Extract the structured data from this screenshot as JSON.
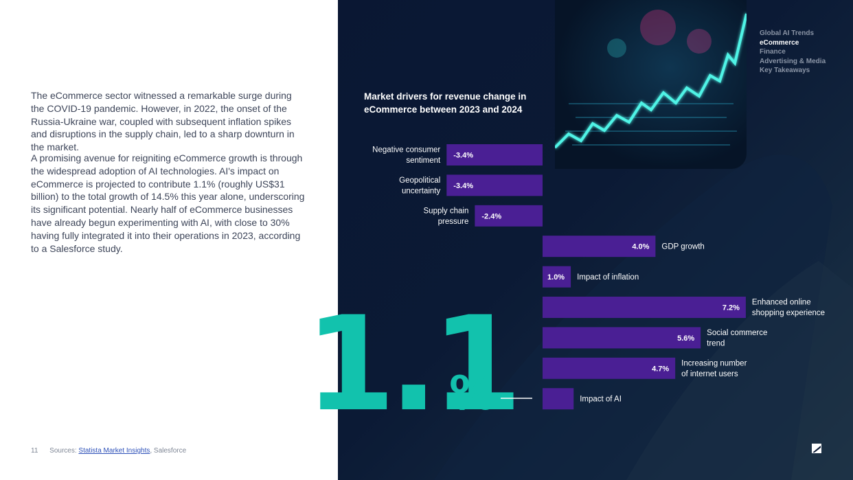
{
  "content": {
    "paragraph_1": "The eCommerce sector witnessed a remarkable surge during the COVID-19 pandemic. However, in 2022, the onset of the Russia-Ukraine war, coupled with subsequent inflation spikes and disruptions in the supply chain, led to a sharp downturn in the market.",
    "paragraph_2": "A promising avenue for reigniting eCommerce growth is through the widespread adoption of AI technologies. AI's impact on eCommerce is projected to contribute 1.1% (roughly US$31 billion) to the total growth of 14.5% this year alone, underscoring its significant potential. Nearly half of eCommerce businesses have already begun experimenting with AI, with close to 30% having fully integrated it into their operations in 2023, according to a Salesforce study."
  },
  "footer": {
    "page_number": "11",
    "sources_prefix": "Sources: ",
    "source_link": "Statista Market Insights",
    "source_rest": ", Salesforce"
  },
  "nav": {
    "items": [
      "Global AI Trends",
      "eCommerce",
      "Finance",
      "Advertising & Media",
      "Key Takeaways"
    ],
    "active": "eCommerce"
  },
  "highlight": {
    "value": "1.1",
    "unit": "%"
  },
  "colors": {
    "bar": "#4a1f94",
    "highlight": "#12c2ad",
    "panel": "#0b1a35",
    "text_light": "#ffffff",
    "nav_inactive": "#8b95a6"
  },
  "icons": [
    "statista-logo-icon"
  ],
  "chart_data": {
    "type": "bar",
    "orientation": "horizontal",
    "title": "Market drivers for revenue change in eCommerce between 2023 and 2024",
    "categories": [
      "Negative consumer sentiment",
      "Geopolitical uncertainty",
      "Supply chain pressure",
      "GDP growth",
      "Impact of inflation",
      "Enhanced online shopping experience",
      "Social commerce trend",
      "Increasing number of internet users",
      "Impact of AI"
    ],
    "values": [
      -3.4,
      -3.4,
      -2.4,
      4.0,
      1.0,
      7.2,
      5.6,
      4.7,
      1.1
    ],
    "value_labels": [
      "-3.4%",
      "-3.4%",
      "-2.4%",
      "4.0%",
      "1.0%",
      "7.2%",
      "5.6%",
      "4.7%",
      ""
    ],
    "grid": false,
    "legend": "none"
  }
}
